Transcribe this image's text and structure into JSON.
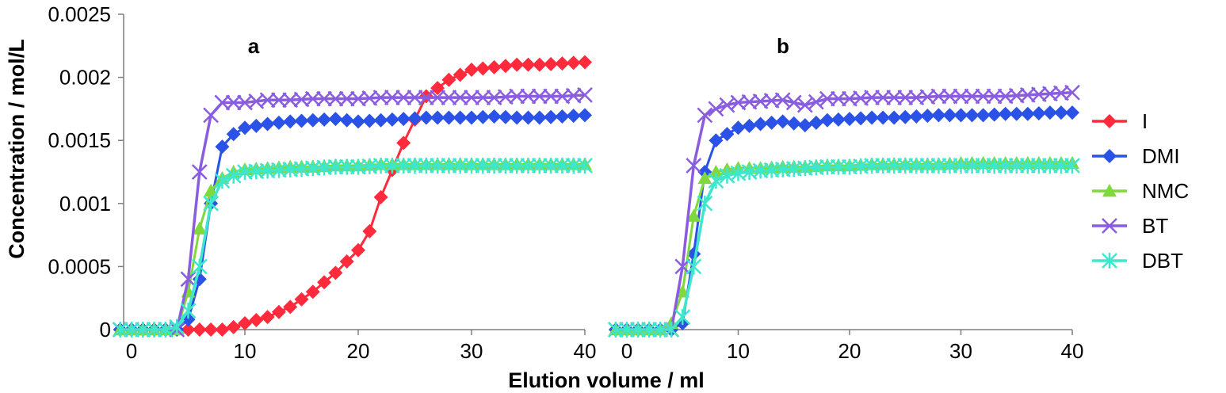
{
  "chart_data": [
    {
      "type": "line",
      "panel_label": "a",
      "xlabel": "Elution volume / ml",
      "ylabel": "Concentration / mol/L",
      "xlim": [
        -1,
        40
      ],
      "ylim": [
        0,
        0.0025
      ],
      "x_ticks": [
        "0",
        "10",
        "20",
        "30",
        "40"
      ],
      "y_ticks": [
        "0",
        "0.0005",
        "0.001",
        "0.0015",
        "0.002",
        "0.0025"
      ],
      "grid": false,
      "legend_position": "right",
      "series": [
        {
          "name": "I",
          "color": "#ff2a3c",
          "marker": "diamond",
          "points": [
            [
              -1,
              0
            ],
            [
              1,
              0
            ],
            [
              3,
              0
            ],
            [
              4,
              0
            ],
            [
              5,
              0
            ],
            [
              6,
              0
            ],
            [
              7,
              0
            ],
            [
              8,
              0
            ],
            [
              9,
              2e-05
            ],
            [
              10,
              5e-05
            ],
            [
              12,
              0.0001
            ],
            [
              14,
              0.00018
            ],
            [
              16,
              0.0003
            ],
            [
              18,
              0.00045
            ],
            [
              20,
              0.00063
            ],
            [
              21,
              0.00078
            ],
            [
              22,
              0.00105
            ],
            [
              24,
              0.00148
            ],
            [
              26,
              0.00185
            ],
            [
              28,
              0.00198
            ],
            [
              30,
              0.00206
            ],
            [
              32,
              0.00208
            ],
            [
              34,
              0.0021
            ],
            [
              36,
              0.0021
            ],
            [
              38,
              0.00211
            ],
            [
              40,
              0.00212
            ]
          ]
        },
        {
          "name": "DMI",
          "color": "#2a52e6",
          "marker": "diamond",
          "points": [
            [
              -1,
              0
            ],
            [
              1,
              0
            ],
            [
              3,
              0
            ],
            [
              4,
              0
            ],
            [
              5,
              8e-05
            ],
            [
              6,
              0.0004
            ],
            [
              7,
              0.001
            ],
            [
              8,
              0.00145
            ],
            [
              9,
              0.00155
            ],
            [
              10,
              0.0016
            ],
            [
              12,
              0.00163
            ],
            [
              14,
              0.00165
            ],
            [
              16,
              0.00166
            ],
            [
              18,
              0.00167
            ],
            [
              20,
              0.00165
            ],
            [
              22,
              0.00166
            ],
            [
              24,
              0.00167
            ],
            [
              26,
              0.00168
            ],
            [
              28,
              0.00168
            ],
            [
              30,
              0.00168
            ],
            [
              32,
              0.00169
            ],
            [
              34,
              0.00168
            ],
            [
              36,
              0.00168
            ],
            [
              38,
              0.00169
            ],
            [
              40,
              0.0017
            ]
          ]
        },
        {
          "name": "NMC",
          "color": "#7fd93a",
          "marker": "triangle",
          "points": [
            [
              -1,
              0
            ],
            [
              1,
              0
            ],
            [
              3,
              0
            ],
            [
              4,
              0
            ],
            [
              5,
              0.0003
            ],
            [
              6,
              0.0008
            ],
            [
              7,
              0.0011
            ],
            [
              8,
              0.0012
            ],
            [
              9,
              0.00125
            ],
            [
              10,
              0.00127
            ],
            [
              12,
              0.00128
            ],
            [
              14,
              0.00129
            ],
            [
              16,
              0.00129
            ],
            [
              18,
              0.0013
            ],
            [
              20,
              0.0013
            ],
            [
              22,
              0.00131
            ],
            [
              24,
              0.00131
            ],
            [
              26,
              0.00131
            ],
            [
              28,
              0.00131
            ],
            [
              30,
              0.00131
            ],
            [
              32,
              0.00131
            ],
            [
              34,
              0.00131
            ],
            [
              36,
              0.00131
            ],
            [
              38,
              0.00131
            ],
            [
              40,
              0.00131
            ]
          ]
        },
        {
          "name": "BT",
          "color": "#8a5ce0",
          "marker": "x",
          "points": [
            [
              -1,
              0
            ],
            [
              1,
              0
            ],
            [
              3,
              0
            ],
            [
              4,
              0
            ],
            [
              5,
              0.0004
            ],
            [
              6,
              0.00125
            ],
            [
              7,
              0.0017
            ],
            [
              8,
              0.0018
            ],
            [
              9,
              0.0018
            ],
            [
              10,
              0.0018
            ],
            [
              12,
              0.00182
            ],
            [
              14,
              0.00182
            ],
            [
              16,
              0.00183
            ],
            [
              18,
              0.00183
            ],
            [
              20,
              0.00183
            ],
            [
              22,
              0.00184
            ],
            [
              24,
              0.00184
            ],
            [
              26,
              0.00184
            ],
            [
              28,
              0.00184
            ],
            [
              30,
              0.00184
            ],
            [
              32,
              0.00184
            ],
            [
              34,
              0.00185
            ],
            [
              36,
              0.00185
            ],
            [
              38,
              0.00185
            ],
            [
              40,
              0.00186
            ]
          ]
        },
        {
          "name": "DBT",
          "color": "#3ee6cc",
          "marker": "asterisk",
          "points": [
            [
              -1,
              0
            ],
            [
              1,
              0
            ],
            [
              3,
              0
            ],
            [
              4,
              2e-05
            ],
            [
              5,
              0.00015
            ],
            [
              6,
              0.0005
            ],
            [
              7,
              0.001
            ],
            [
              8,
              0.00118
            ],
            [
              9,
              0.00122
            ],
            [
              10,
              0.00125
            ],
            [
              12,
              0.00126
            ],
            [
              14,
              0.00127
            ],
            [
              16,
              0.00128
            ],
            [
              18,
              0.00129
            ],
            [
              20,
              0.00129
            ],
            [
              22,
              0.0013
            ],
            [
              24,
              0.0013
            ],
            [
              26,
              0.0013
            ],
            [
              28,
              0.0013
            ],
            [
              30,
              0.0013
            ],
            [
              32,
              0.0013
            ],
            [
              34,
              0.0013
            ],
            [
              36,
              0.0013
            ],
            [
              38,
              0.0013
            ],
            [
              40,
              0.0013
            ]
          ]
        }
      ]
    },
    {
      "type": "line",
      "panel_label": "b",
      "xlim": [
        -1,
        40
      ],
      "ylim": [
        0,
        0.0025
      ],
      "x_ticks": [
        "0",
        "10",
        "20",
        "30",
        "40"
      ],
      "grid": false,
      "series": [
        {
          "name": "DMI",
          "color": "#2a52e6",
          "marker": "diamond",
          "points": [
            [
              -1,
              0
            ],
            [
              1,
              0
            ],
            [
              3,
              0
            ],
            [
              4,
              0
            ],
            [
              5,
              5e-05
            ],
            [
              6,
              0.0006
            ],
            [
              7,
              0.00125
            ],
            [
              8,
              0.0015
            ],
            [
              9,
              0.00155
            ],
            [
              10,
              0.0016
            ],
            [
              12,
              0.00163
            ],
            [
              14,
              0.00165
            ],
            [
              16,
              0.00162
            ],
            [
              18,
              0.00166
            ],
            [
              20,
              0.00167
            ],
            [
              22,
              0.00168
            ],
            [
              24,
              0.00168
            ],
            [
              26,
              0.00169
            ],
            [
              28,
              0.0017
            ],
            [
              30,
              0.0017
            ],
            [
              32,
              0.0017
            ],
            [
              34,
              0.00171
            ],
            [
              36,
              0.00171
            ],
            [
              38,
              0.00172
            ],
            [
              40,
              0.00172
            ]
          ]
        },
        {
          "name": "NMC",
          "color": "#7fd93a",
          "marker": "triangle",
          "points": [
            [
              -1,
              0
            ],
            [
              1,
              0
            ],
            [
              3,
              0
            ],
            [
              4,
              5e-05
            ],
            [
              5,
              0.0003
            ],
            [
              6,
              0.0009
            ],
            [
              7,
              0.0012
            ],
            [
              8,
              0.00125
            ],
            [
              9,
              0.00127
            ],
            [
              10,
              0.00128
            ],
            [
              12,
              0.00128
            ],
            [
              14,
              0.00129
            ],
            [
              16,
              0.00129
            ],
            [
              18,
              0.0013
            ],
            [
              20,
              0.0013
            ],
            [
              22,
              0.00131
            ],
            [
              24,
              0.00131
            ],
            [
              26,
              0.00131
            ],
            [
              28,
              0.00131
            ],
            [
              30,
              0.00132
            ],
            [
              32,
              0.00132
            ],
            [
              34,
              0.00132
            ],
            [
              36,
              0.00132
            ],
            [
              38,
              0.00132
            ],
            [
              40,
              0.00132
            ]
          ]
        },
        {
          "name": "BT",
          "color": "#8a5ce0",
          "marker": "x",
          "points": [
            [
              -1,
              0
            ],
            [
              1,
              0
            ],
            [
              3,
              0
            ],
            [
              4,
              0
            ],
            [
              5,
              0.0005
            ],
            [
              6,
              0.0013
            ],
            [
              7,
              0.0017
            ],
            [
              8,
              0.00175
            ],
            [
              9,
              0.00178
            ],
            [
              10,
              0.0018
            ],
            [
              12,
              0.00181
            ],
            [
              14,
              0.00182
            ],
            [
              16,
              0.00178
            ],
            [
              18,
              0.00183
            ],
            [
              20,
              0.00183
            ],
            [
              22,
              0.00184
            ],
            [
              24,
              0.00184
            ],
            [
              26,
              0.00184
            ],
            [
              28,
              0.00185
            ],
            [
              30,
              0.00185
            ],
            [
              32,
              0.00185
            ],
            [
              34,
              0.00185
            ],
            [
              36,
              0.00186
            ],
            [
              38,
              0.00187
            ],
            [
              40,
              0.00188
            ]
          ]
        },
        {
          "name": "DBT",
          "color": "#3ee6cc",
          "marker": "asterisk",
          "points": [
            [
              -1,
              0
            ],
            [
              1,
              0
            ],
            [
              3,
              0
            ],
            [
              4,
              0
            ],
            [
              5,
              0.0001
            ],
            [
              6,
              0.0005
            ],
            [
              7,
              0.001
            ],
            [
              8,
              0.00118
            ],
            [
              9,
              0.00122
            ],
            [
              10,
              0.00124
            ],
            [
              12,
              0.00126
            ],
            [
              14,
              0.00127
            ],
            [
              16,
              0.00128
            ],
            [
              18,
              0.00129
            ],
            [
              20,
              0.00129
            ],
            [
              22,
              0.0013
            ],
            [
              24,
              0.0013
            ],
            [
              26,
              0.0013
            ],
            [
              28,
              0.0013
            ],
            [
              30,
              0.0013
            ],
            [
              32,
              0.0013
            ],
            [
              34,
              0.0013
            ],
            [
              36,
              0.0013
            ],
            [
              38,
              0.0013
            ],
            [
              40,
              0.0013
            ]
          ]
        }
      ]
    }
  ],
  "legend": [
    {
      "label": "I",
      "color": "#ff2a3c",
      "marker": "diamond"
    },
    {
      "label": "DMI",
      "color": "#2a52e6",
      "marker": "diamond"
    },
    {
      "label": "NMC",
      "color": "#7fd93a",
      "marker": "triangle"
    },
    {
      "label": "BT",
      "color": "#8a5ce0",
      "marker": "x"
    },
    {
      "label": "DBT",
      "color": "#3ee6cc",
      "marker": "asterisk"
    }
  ]
}
